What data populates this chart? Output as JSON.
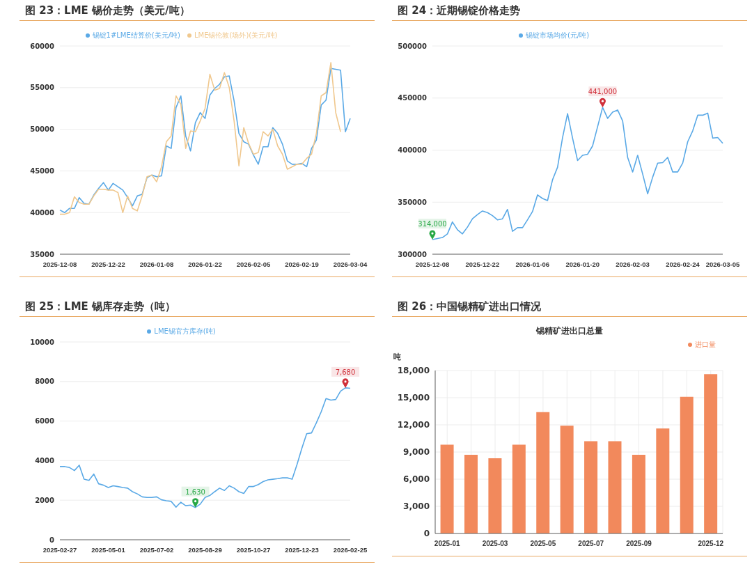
{
  "chart_data": [
    {
      "type": "line",
      "title": "图 23：LME 锡价走势（美元/吨）",
      "categories": [
        "2025-12-08",
        null,
        null,
        null,
        null,
        null,
        null,
        null,
        null,
        null,
        "2025-12-22",
        null,
        null,
        null,
        null,
        null,
        null,
        null,
        null,
        null,
        "2026-01-08",
        null,
        null,
        null,
        null,
        null,
        null,
        null,
        null,
        null,
        "2026-01-22",
        null,
        null,
        null,
        null,
        null,
        null,
        null,
        null,
        null,
        "2026-02-05",
        null,
        null,
        null,
        null,
        null,
        null,
        null,
        null,
        null,
        "2026-02-19",
        null,
        null,
        null,
        null,
        null,
        null,
        null,
        null,
        null,
        "2026-03-04"
      ],
      "series": [
        {
          "name": "锡锭1#LME结算价(美元/吨)",
          "color": "#5aa9e6",
          "values": [
            40300,
            40000,
            40500,
            40500,
            41800,
            41100,
            41000,
            42100,
            42900,
            43600,
            42700,
            43500,
            43100,
            42700,
            41800,
            40800,
            42000,
            42200,
            44200,
            44500,
            44300,
            44400,
            48000,
            47700,
            52600,
            54000,
            49200,
            47400,
            50800,
            52000,
            51300,
            54100,
            54900,
            55400,
            56300,
            56400,
            53400,
            49500,
            48500,
            48200,
            46900,
            45800,
            47900,
            47900,
            50200,
            49500,
            48200,
            46200,
            45800,
            45800,
            45900,
            45500,
            47700,
            48700,
            52900,
            53500,
            57300,
            57200,
            57100,
            49700,
            51300
          ]
        },
        {
          "name": "LME锡伦敦(场外)(美元/吨)",
          "color": "#f0c88e",
          "values": [
            39800,
            39800,
            40000,
            41900,
            41200,
            41000,
            41000,
            42000,
            42800,
            42800,
            42700,
            42700,
            42400,
            40000,
            42000,
            40500,
            40200,
            42000,
            44300,
            44500,
            43700,
            45500,
            48500,
            49200,
            54000,
            53000,
            47700,
            49800,
            49700,
            51000,
            52500,
            56600,
            54700,
            54900,
            56800,
            55000,
            51000,
            45600,
            50200,
            48300,
            47000,
            47200,
            49700,
            49200,
            50000,
            48000,
            47000,
            45200,
            45500,
            45800,
            45800,
            46500,
            47000,
            49500,
            54000,
            54400,
            58000,
            52000,
            49700,
            null,
            null
          ]
        }
      ],
      "ylim": [
        35000,
        60000
      ],
      "yticks": [
        35000,
        40000,
        45000,
        50000,
        55000,
        60000
      ],
      "grid": "y",
      "legend": "top",
      "marker": "none",
      "line_style": "solid"
    },
    {
      "type": "line",
      "title": "图 24：近期锡锭价格走势",
      "categories": [
        "2025-12-08",
        null,
        null,
        null,
        null,
        null,
        null,
        null,
        null,
        null,
        "2025-12-22",
        null,
        null,
        null,
        null,
        null,
        null,
        null,
        null,
        null,
        "2026-01-06",
        null,
        null,
        null,
        null,
        null,
        null,
        null,
        null,
        null,
        "2026-01-20",
        null,
        null,
        null,
        null,
        null,
        null,
        null,
        null,
        null,
        "2026-02-03",
        null,
        null,
        null,
        null,
        null,
        null,
        null,
        null,
        null,
        "2026-02-24",
        null,
        null,
        null,
        null,
        null,
        null,
        null,
        "2026-03-05"
      ],
      "series": [
        {
          "name": "锡锭市场均价(元/吨)",
          "color": "#5aa9e6",
          "values": [
            314000,
            315000,
            316000,
            319500,
            331000,
            323500,
            319500,
            326000,
            334000,
            338000,
            341500,
            340000,
            337000,
            333000,
            334000,
            343000,
            322000,
            325500,
            325500,
            333000,
            341000,
            357000,
            353500,
            351500,
            371500,
            383500,
            412000,
            435000,
            411500,
            390000,
            395000,
            396000,
            404000,
            422500,
            441000,
            430500,
            436500,
            438500,
            428000,
            393000,
            379000,
            395000,
            377000,
            358000,
            374000,
            387500,
            388000,
            393000,
            379000,
            379000,
            387500,
            408000,
            418500,
            433500,
            433500,
            435500,
            411500,
            412000,
            406500
          ]
        }
      ],
      "ylim": [
        300000,
        500000
      ],
      "yticks": [
        300000,
        350000,
        400000,
        450000,
        500000
      ],
      "grid": "y",
      "legend": "top",
      "marker": "none",
      "line_style": "solid",
      "annotations": [
        {
          "text": "314,000",
          "x": "2025-12-08",
          "y": 314000
        },
        {
          "text": "441,000",
          "y": 441000
        }
      ]
    },
    {
      "type": "line",
      "title": "图 25：LME 锡库存走势（吨）",
      "categories": [
        "2025-02-27",
        null,
        null,
        null,
        null,
        null,
        null,
        null,
        null,
        null,
        "2025-05-01",
        null,
        null,
        null,
        null,
        null,
        null,
        null,
        null,
        null,
        "2025-07-02",
        null,
        null,
        null,
        null,
        null,
        null,
        null,
        null,
        null,
        "2025-08-29",
        null,
        null,
        null,
        null,
        null,
        null,
        null,
        null,
        null,
        "2025-10-27",
        null,
        null,
        null,
        null,
        null,
        null,
        null,
        null,
        null,
        "2025-12-23",
        null,
        null,
        null,
        null,
        null,
        null,
        null,
        null,
        null,
        "2026-02-25"
      ],
      "series": [
        {
          "name": "LME锡官方库存(吨)",
          "color": "#5aa9e6",
          "values": [
            3700,
            3700,
            3650,
            3500,
            3770,
            3060,
            3000,
            3320,
            2830,
            2760,
            2640,
            2730,
            2690,
            2640,
            2610,
            2430,
            2320,
            2170,
            2140,
            2140,
            2170,
            2020,
            1970,
            1940,
            1650,
            1900,
            1720,
            1750,
            1630,
            1800,
            2140,
            2240,
            2430,
            2610,
            2490,
            2730,
            2610,
            2430,
            2340,
            2690,
            2690,
            2790,
            2940,
            3030,
            3060,
            3090,
            3130,
            3130,
            3060,
            3800,
            4620,
            5360,
            5400,
            5910,
            6470,
            7140,
            7060,
            7090,
            7510,
            7680,
            7660
          ]
        }
      ],
      "ylim": [
        0,
        10000
      ],
      "yticks": [
        0,
        2000,
        4000,
        6000,
        8000,
        10000
      ],
      "grid": "y",
      "legend": "top",
      "marker": "none",
      "line_style": "solid",
      "annotations": [
        {
          "text": "1,630",
          "y": 1630
        },
        {
          "text": "7,680",
          "y": 7680
        }
      ]
    },
    {
      "type": "bar",
      "title": "图 26：中国锡精矿进出口情况",
      "subtitle": "锡精矿进出口总量",
      "ylabel": "吨",
      "categories": [
        "2025-01",
        null,
        "2025-03",
        null,
        "2025-05",
        null,
        "2025-07",
        null,
        "2025-09",
        null,
        null,
        "2025-12"
      ],
      "series": [
        {
          "name": "进口量",
          "color": "#f2895c",
          "values": [
            9800,
            8700,
            8300,
            9800,
            13400,
            11900,
            10200,
            10200,
            8700,
            11600,
            15100,
            17600
          ]
        }
      ],
      "ylim": [
        0,
        18000
      ],
      "yticks": [
        0,
        {
          "value": 3000,
          "label": "3,000"
        },
        {
          "value": 6000,
          "label": "6,000"
        },
        {
          "value": 9000,
          "label": "9,000"
        },
        {
          "value": 12000,
          "label": "12,000"
        },
        {
          "value": 15000,
          "label": "15,000"
        },
        {
          "value": 18000,
          "label": "18,000"
        }
      ],
      "grid": true,
      "legend": "top right"
    }
  ]
}
